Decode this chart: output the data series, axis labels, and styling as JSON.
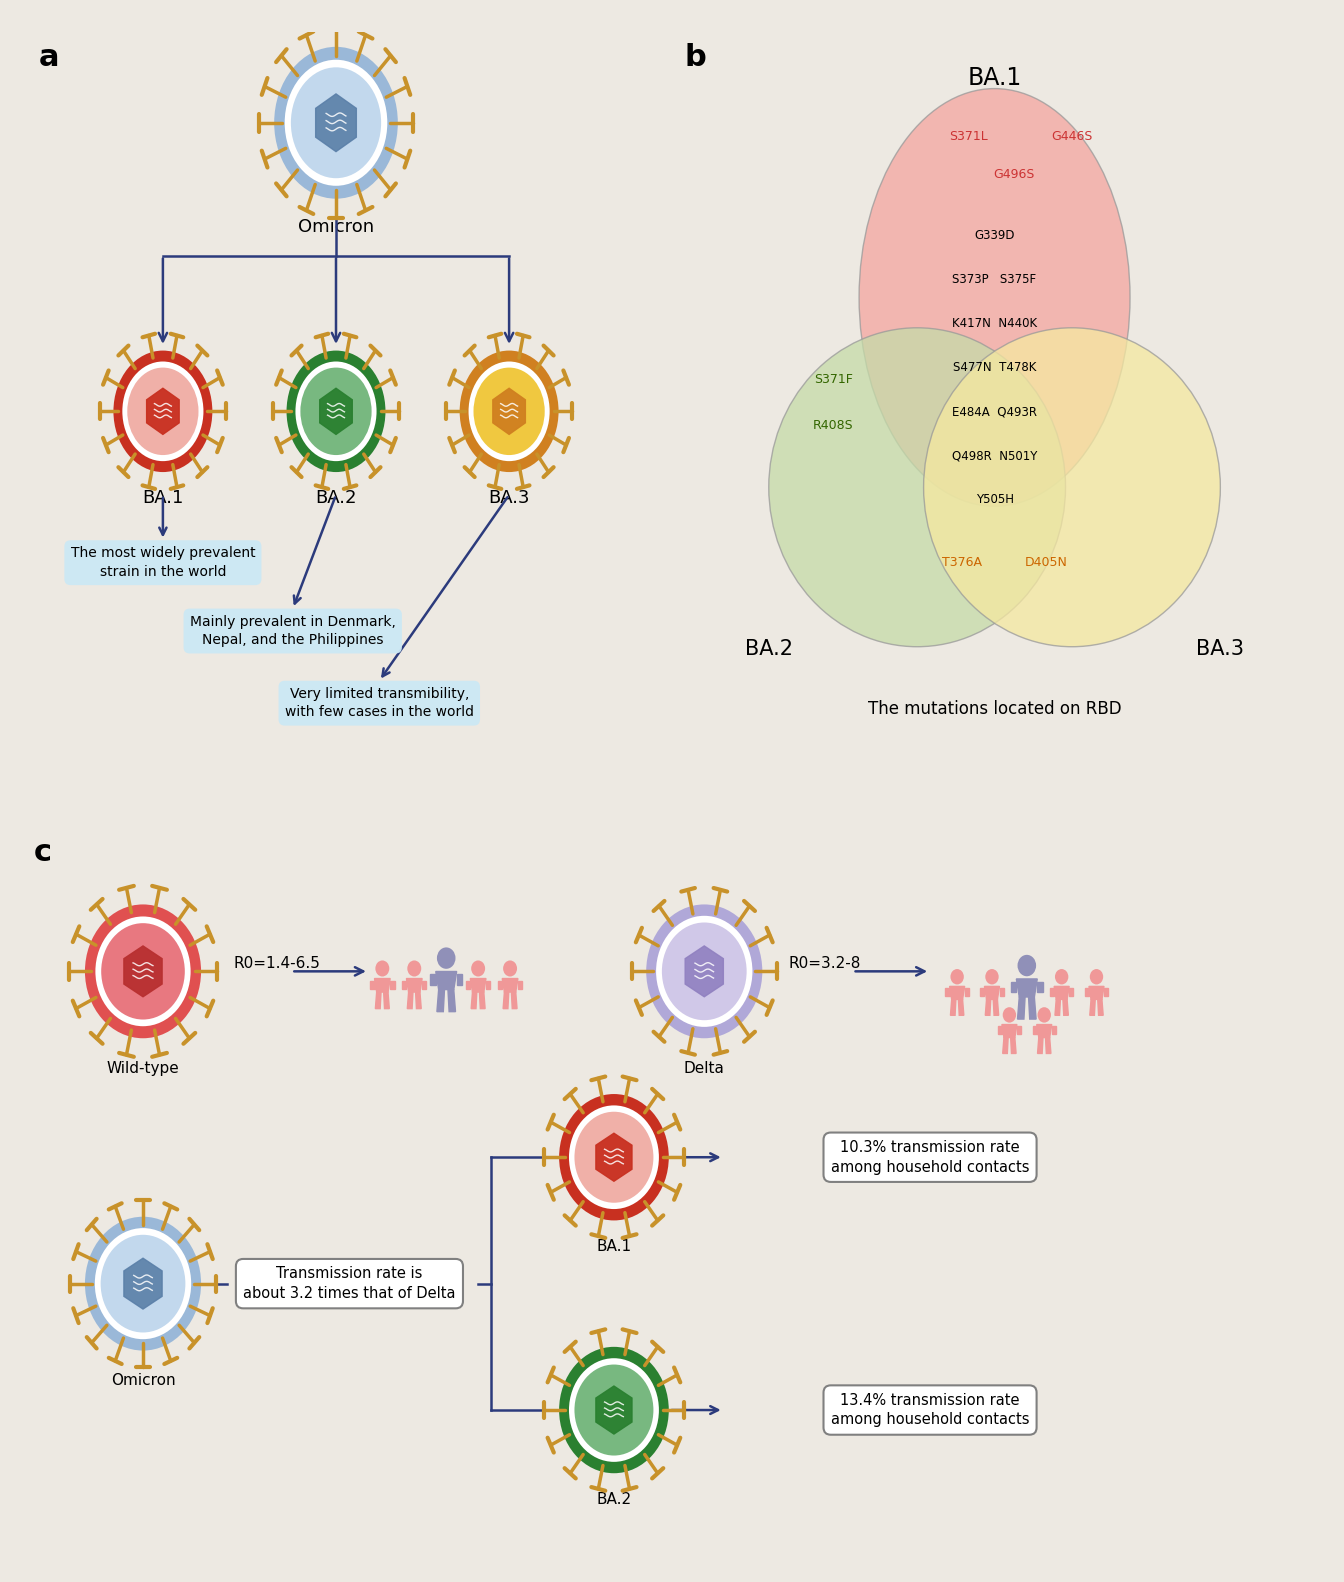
{
  "bg_color": "#ede9e2",
  "panel_a": {
    "label": "a",
    "omicron_label": "Omicron",
    "ba1_label": "BA.1",
    "ba2_label": "BA.2",
    "ba3_label": "BA.3",
    "ba1_desc": "The most widely prevalent\nstrain in the world",
    "ba2_desc": "Mainly prevalent in Denmark,\nNepal, and the Philippines",
    "ba3_desc": "Very limited transmibility,\nwith few cases in the world",
    "arrow_color": "#2c3b7c",
    "box_color": "#cce8f4"
  },
  "panel_b": {
    "label": "b",
    "ba1_label": "BA.1",
    "ba2_label": "BA.2",
    "ba3_label": "BA.3",
    "ba1_only": [
      "S371L",
      "G446S",
      "G496S"
    ],
    "shared_all": [
      "G339D",
      "S373P",
      "S375F",
      "K417N",
      "N440K",
      "S477N",
      "T478K",
      "E484A",
      "Q493R",
      "Q498R",
      "N501Y",
      "Y505H"
    ],
    "ba2_only": [
      "S371F",
      "R408S"
    ],
    "ba23_shared": [
      "T376A",
      "D405N"
    ],
    "ba1_color": "#f4a6a0",
    "ba2_color": "#c5dba8",
    "ba3_color": "#f5e8a0",
    "caption": "The mutations located on RBD",
    "ba1_text_color": "#cc3333",
    "ba2_text_color": "#336600",
    "ba3_text_color": "#cc6600"
  },
  "panel_c": {
    "label": "c",
    "wildtype_label": "Wild-type",
    "delta_label": "Delta",
    "omicron_label": "Omicron",
    "ba1_label": "BA.1",
    "ba2_label": "BA.2",
    "wt_r0": "R0=1.4-6.5",
    "delta_r0": "R0=3.2-8",
    "transmission_text": "Transmission rate is\nabout 3.2 times that of Delta",
    "ba1_rate": "10.3% transmission rate\namong household contacts",
    "ba2_rate": "13.4% transmission rate\namong household contacts",
    "arrow_color": "#2c3b7c",
    "box_color": "#e8e8e8"
  }
}
